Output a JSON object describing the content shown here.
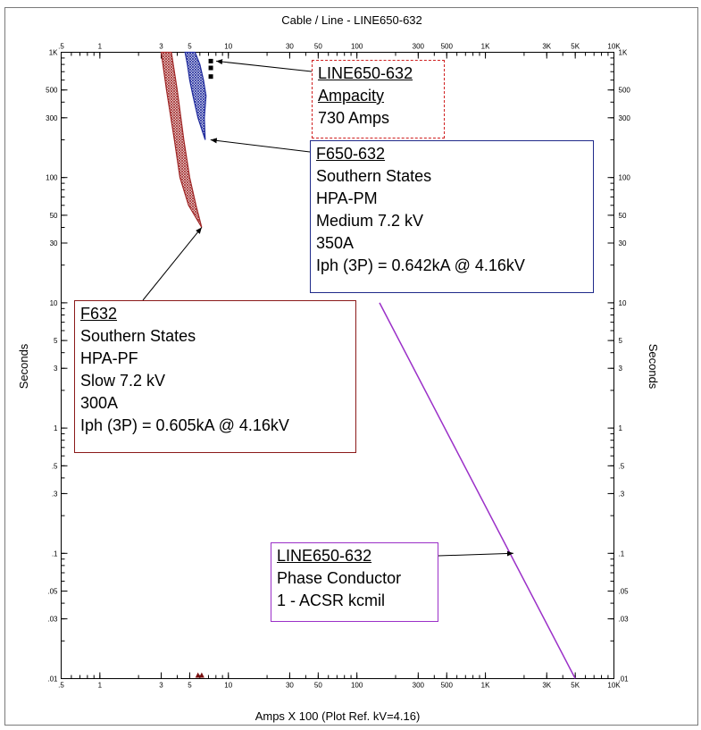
{
  "chart_data": {
    "type": "line",
    "title": "Cable / Line - LINE650-632",
    "xlabel": "Amps  X  100 (Plot Ref. kV=4.16)",
    "ylabel_left": "Seconds",
    "ylabel_right": "Seconds",
    "x_scale": "log",
    "y_scale": "log",
    "xlim": [
      0.5,
      10000
    ],
    "ylim": [
      0.01,
      1000
    ],
    "x_tick_labels": [
      ".5",
      "1",
      "3",
      "5",
      "10",
      "30",
      "50",
      "100",
      "300",
      "500",
      "1K",
      "3K",
      "5K",
      "10K"
    ],
    "x_tick_values": [
      0.5,
      1,
      3,
      5,
      10,
      30,
      50,
      100,
      300,
      500,
      1000,
      3000,
      5000,
      10000
    ],
    "y_tick_labels": [
      ".01",
      ".03",
      ".05",
      ".1",
      ".3",
      ".5",
      "1",
      "3",
      "5",
      "10",
      "30",
      "50",
      "100",
      "300",
      "500",
      "1K"
    ],
    "y_tick_values": [
      0.01,
      0.03,
      0.05,
      0.1,
      0.3,
      0.5,
      1,
      3,
      5,
      10,
      30,
      50,
      100,
      300,
      500,
      1000
    ],
    "grid": false,
    "series": [
      {
        "name": "F632",
        "kind": "band",
        "color": "#a02828",
        "upper": [
          [
            3.6,
            1000
          ],
          [
            4.0,
            500
          ],
          [
            4.5,
            200
          ],
          [
            5.0,
            100
          ],
          [
            5.6,
            60
          ],
          [
            6.2,
            40
          ]
        ],
        "lower": [
          [
            3.0,
            1000
          ],
          [
            3.3,
            500
          ],
          [
            3.8,
            200
          ],
          [
            4.2,
            100
          ],
          [
            4.9,
            60
          ],
          [
            6.2,
            40
          ]
        ]
      },
      {
        "name": "F650-632",
        "kind": "band",
        "color": "#1f2a9c",
        "upper": [
          [
            5.5,
            1000
          ],
          [
            6.0,
            800
          ],
          [
            6.4,
            600
          ],
          [
            6.7,
            450
          ],
          [
            6.5,
            300
          ],
          [
            6.6,
            200
          ]
        ],
        "lower": [
          [
            4.6,
            1000
          ],
          [
            4.8,
            800
          ],
          [
            5.0,
            600
          ],
          [
            5.3,
            450
          ],
          [
            5.8,
            300
          ],
          [
            6.6,
            200
          ]
        ]
      },
      {
        "name": "LINE650-632",
        "kind": "line",
        "color": "#9b30c8",
        "points": [
          [
            150,
            10
          ],
          [
            5000,
            0.01
          ]
        ]
      }
    ],
    "ampacity_markers": [
      [
        7.3,
        850
      ],
      [
        7.3,
        750
      ],
      [
        7.3,
        640
      ]
    ],
    "bottom_markers": [
      [
        5.8,
        0.01
      ],
      [
        6.2,
        0.01
      ]
    ],
    "annotations": [
      {
        "id": "ampacity",
        "lines": [
          "LINE650-632",
          "Ampacity",
          "730 Amps"
        ],
        "arrow_to": [
          7.3,
          850
        ],
        "color": "#d02020"
      },
      {
        "id": "f650",
        "lines": [
          "F650-632",
          "Southern States",
          "HPA-PM",
          "Medium  7.2 kV",
          "350A",
          "Iph (3P) = 0.642kA @ 4.16kV"
        ],
        "arrow_to": [
          6.6,
          200
        ],
        "color": "#1f2a8a"
      },
      {
        "id": "f632",
        "lines": [
          "F632",
          "Southern States",
          "HPA-PF",
          "Slow  7.2 kV",
          "300A",
          "Iph (3P) = 0.605kA @ 4.16kV"
        ],
        "arrow_to": [
          6.2,
          40
        ],
        "color": "#8b1a1a"
      },
      {
        "id": "cond",
        "lines": [
          "LINE650-632",
          "Phase Conductor",
          "1 - ACSR  kcmil"
        ],
        "arrow_to": [
          1500,
          0.1
        ],
        "color": "#9b30c8"
      }
    ]
  }
}
